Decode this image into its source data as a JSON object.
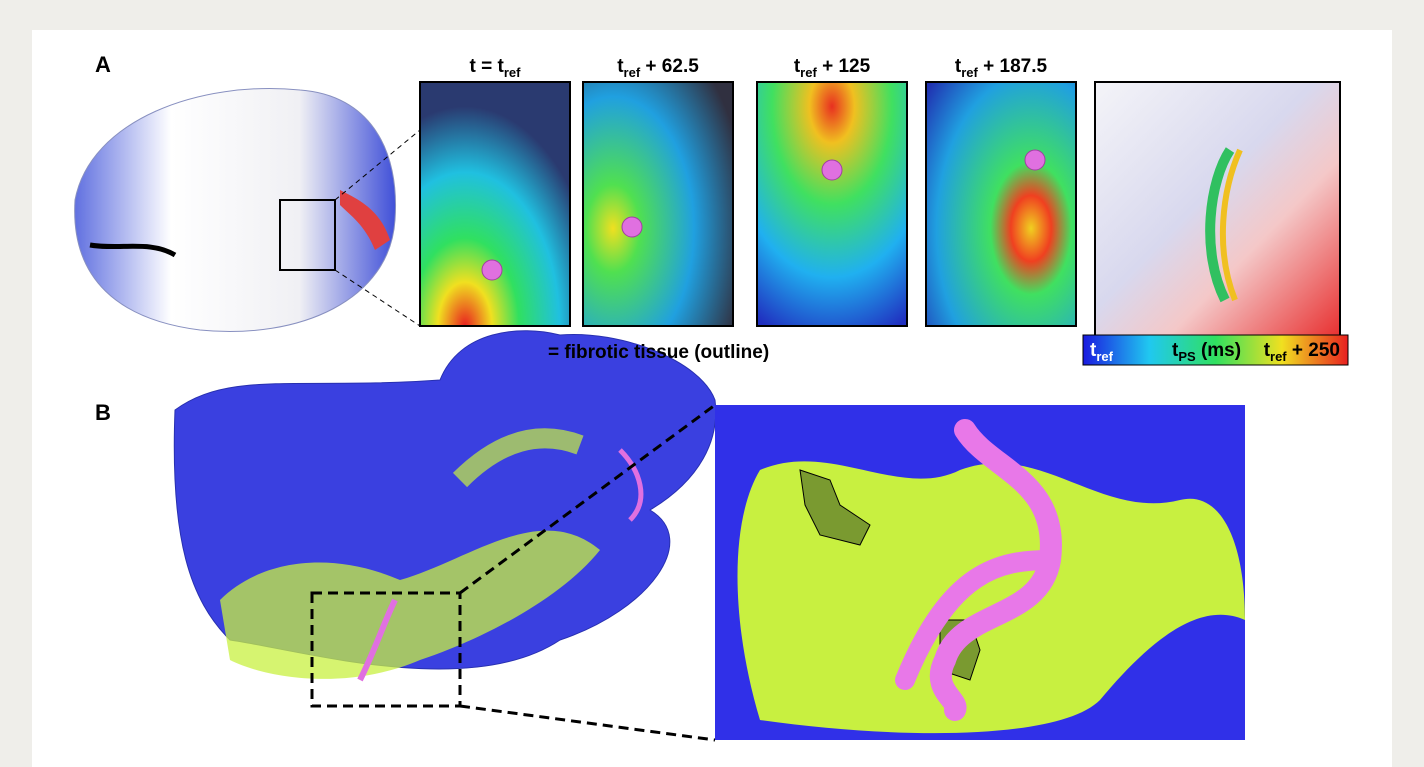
{
  "panel_a": {
    "label": "A",
    "frames": [
      {
        "prefix": "t = t",
        "sub": "ref"
      },
      {
        "prefix": "t",
        "sub": "ref",
        "suffix": " + 62.5"
      },
      {
        "prefix": "t",
        "sub": "ref",
        "suffix": " + 125"
      },
      {
        "prefix": "t",
        "sub": "ref",
        "suffix": " + 187.5"
      }
    ],
    "legend": "= fibrotic tissue (outline)",
    "colorbar": {
      "start": {
        "prefix": "t",
        "sub": "ref"
      },
      "middle": {
        "prefix": "t",
        "sub": "PS",
        "suffix": " (ms)"
      },
      "end": {
        "prefix": "t",
        "sub": "ref",
        "suffix": " + 250"
      }
    }
  },
  "panel_b": {
    "label": "B"
  }
}
